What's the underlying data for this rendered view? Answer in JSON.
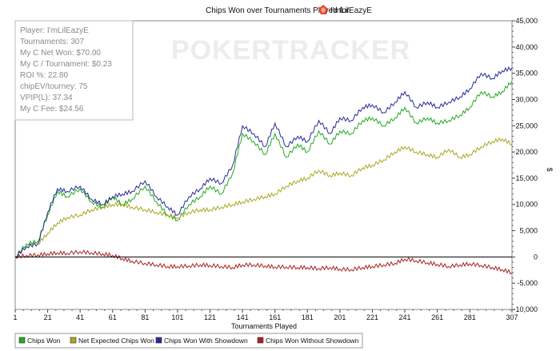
{
  "chart_data": {
    "type": "line",
    "title": "Chips Won over Tournaments Played for",
    "player_name": "I'mLilEazyE",
    "xlabel": "Tournaments Played",
    "ylabel": "$",
    "xlim": [
      1,
      307
    ],
    "ylim": [
      -10000,
      45000
    ],
    "x_ticks": [
      1,
      21,
      41,
      61,
      81,
      101,
      121,
      141,
      161,
      181,
      201,
      221,
      241,
      261,
      281,
      307
    ],
    "y_ticks": [
      -10000,
      -5000,
      0,
      5000,
      10000,
      15000,
      20000,
      25000,
      30000,
      35000,
      40000,
      45000
    ],
    "y_tick_labels": [
      "-10,000",
      "-5,000",
      "0",
      "5,000",
      "10,000",
      "15,000",
      "20,000",
      "25,000",
      "30,000",
      "35,000",
      "40,000",
      "45,000"
    ],
    "grid": false,
    "legend_position": "bottom",
    "series": [
      {
        "name": "Chips Won",
        "color": "#22aa22",
        "x": [
          1,
          8,
          15,
          21,
          27,
          33,
          41,
          48,
          55,
          61,
          67,
          73,
          81,
          88,
          95,
          101,
          108,
          115,
          121,
          128,
          135,
          141,
          148,
          155,
          161,
          168,
          175,
          181,
          188,
          195,
          201,
          208,
          215,
          221,
          228,
          235,
          241,
          248,
          255,
          261,
          268,
          275,
          281,
          288,
          295,
          301,
          307
        ],
        "y": [
          0,
          2500,
          3000,
          8000,
          12500,
          11500,
          13000,
          10500,
          9500,
          11500,
          10000,
          11000,
          13500,
          10500,
          8000,
          7000,
          10000,
          11500,
          13500,
          12000,
          16000,
          23500,
          22000,
          19500,
          23500,
          19000,
          21500,
          20000,
          24000,
          21500,
          24000,
          23500,
          26000,
          26500,
          25000,
          26500,
          28500,
          25500,
          26500,
          25500,
          26000,
          27000,
          28500,
          31500,
          30500,
          31500,
          33500
        ]
      },
      {
        "name": "Net Expected Chips Won",
        "color": "#a8a822",
        "x": [
          1,
          8,
          15,
          21,
          27,
          33,
          41,
          48,
          55,
          61,
          67,
          73,
          81,
          88,
          95,
          101,
          108,
          115,
          121,
          128,
          135,
          141,
          148,
          155,
          161,
          168,
          175,
          181,
          188,
          195,
          201,
          208,
          215,
          221,
          228,
          235,
          241,
          248,
          255,
          261,
          268,
          275,
          281,
          288,
          295,
          301,
          307
        ],
        "y": [
          0,
          2000,
          2500,
          4500,
          6500,
          7500,
          8000,
          9000,
          9500,
          10000,
          10000,
          9500,
          9000,
          8500,
          8000,
          7500,
          8500,
          9000,
          9000,
          9500,
          10000,
          10500,
          11000,
          11500,
          12000,
          13500,
          14500,
          15000,
          16500,
          15500,
          16000,
          15500,
          17000,
          17500,
          18500,
          20000,
          21000,
          20000,
          19500,
          19000,
          20500,
          19000,
          19500,
          21000,
          22000,
          22500,
          21500
        ]
      },
      {
        "name": "Chips Won With Showdown",
        "color": "#2a2a99",
        "x": [
          1,
          8,
          15,
          21,
          27,
          33,
          41,
          48,
          55,
          61,
          67,
          73,
          81,
          88,
          95,
          101,
          108,
          115,
          121,
          128,
          135,
          141,
          148,
          155,
          161,
          168,
          175,
          181,
          188,
          195,
          201,
          208,
          215,
          221,
          228,
          235,
          241,
          248,
          255,
          261,
          268,
          275,
          281,
          288,
          295,
          301,
          307
        ],
        "y": [
          0,
          2000,
          2500,
          8500,
          13000,
          12500,
          13500,
          11000,
          10000,
          11500,
          12000,
          12500,
          14500,
          11500,
          9500,
          8000,
          11500,
          13000,
          15000,
          14000,
          17500,
          25000,
          23500,
          21000,
          25500,
          21000,
          23000,
          22000,
          26000,
          23500,
          26500,
          26000,
          28500,
          29000,
          27500,
          29500,
          31500,
          28500,
          29500,
          28500,
          29500,
          30500,
          32000,
          35000,
          34000,
          35500,
          36000
        ]
      },
      {
        "name": "Chips Won Without Showdown",
        "color": "#aa2222",
        "x": [
          1,
          8,
          15,
          21,
          27,
          33,
          41,
          48,
          55,
          61,
          67,
          73,
          81,
          88,
          95,
          101,
          108,
          115,
          121,
          128,
          135,
          141,
          148,
          155,
          161,
          168,
          175,
          181,
          188,
          195,
          201,
          208,
          215,
          221,
          228,
          235,
          241,
          248,
          255,
          261,
          268,
          275,
          281,
          288,
          295,
          301,
          307
        ],
        "y": [
          0,
          300,
          400,
          600,
          800,
          700,
          1000,
          800,
          600,
          300,
          -300,
          -800,
          -1200,
          -1500,
          -1800,
          -1800,
          -1700,
          -1500,
          -1600,
          -1800,
          -2000,
          -1500,
          -1500,
          -1700,
          -1900,
          -1900,
          -2000,
          -2000,
          -2200,
          -2000,
          -2300,
          -2400,
          -2000,
          -1800,
          -1500,
          -1200,
          -400,
          -700,
          -1100,
          -1400,
          -1800,
          -1500,
          -1300,
          -1600,
          -2000,
          -2400,
          -3000
        ]
      }
    ]
  },
  "watermark": "POKERTRACKER",
  "stats": [
    "Player: I'mLilEazyE",
    "Tournaments: 307",
    "My C Net Won: $70.00",
    "My C / Tournament: $0.23",
    "ROI %: 22.80",
    "chipEV/tourney: 75",
    "VPIP(L): 37.34",
    "My C Fee: $24.56"
  ],
  "colors": {
    "plot_border": "#888888",
    "zero_line": "#000000",
    "stats_border": "#bbbbbb",
    "stats_text": "#8a8a8a",
    "logo_icon": "#e8482a"
  },
  "icons": {
    "title_icon": "poker-logo-icon"
  }
}
